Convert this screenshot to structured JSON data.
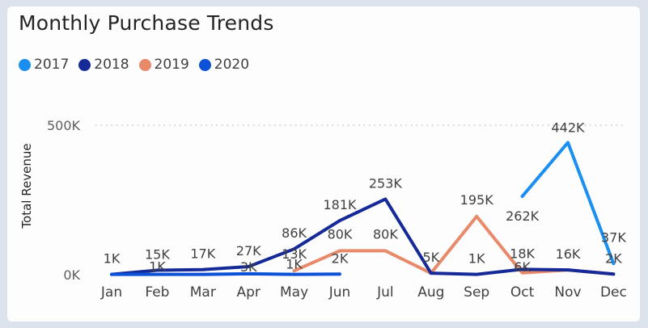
{
  "card": {
    "title": "Monthly Purchase Trends"
  },
  "chart_data": {
    "type": "line",
    "title": "Monthly Purchase Trends",
    "xlabel": "",
    "ylabel": "Total Revenue",
    "ylim": [
      0,
      500000
    ],
    "yticks": [
      {
        "value": 0,
        "label": "0K"
      },
      {
        "value": 500000,
        "label": "500K"
      }
    ],
    "grid": true,
    "legend_position": "top-left",
    "categories": [
      "Jan",
      "Feb",
      "Mar",
      "Apr",
      "May",
      "Jun",
      "Jul",
      "Aug",
      "Sep",
      "Oct",
      "Nov",
      "Dec"
    ],
    "series": [
      {
        "name": "2017",
        "color": "#1a8ff0",
        "values": [
          null,
          null,
          null,
          null,
          null,
          null,
          null,
          null,
          null,
          262000,
          442000,
          37000
        ],
        "labels": [
          null,
          null,
          null,
          null,
          null,
          null,
          null,
          null,
          null,
          "262K",
          "442K",
          "37K"
        ]
      },
      {
        "name": "2018",
        "color": "#152a96",
        "values": [
          1000,
          15000,
          17000,
          27000,
          86000,
          181000,
          253000,
          5000,
          1000,
          18000,
          16000,
          2000
        ],
        "labels": [
          "1K",
          "15K",
          "17K",
          "27K",
          "86K",
          "181K",
          "253K",
          "5K",
          "1K",
          "18K",
          "16K",
          "2K"
        ]
      },
      {
        "name": "2019",
        "color": "#e8896a",
        "values": [
          null,
          null,
          null,
          null,
          13000,
          80000,
          80000,
          5000,
          195000,
          6000,
          16000,
          2000
        ],
        "labels": [
          null,
          null,
          null,
          null,
          "13K",
          "80K",
          "80K",
          null,
          "195K",
          "6K",
          null,
          null
        ]
      },
      {
        "name": "2020",
        "color": "#0d52d6",
        "values": [
          1000,
          1000,
          1000,
          3000,
          1000,
          2000,
          null,
          null,
          null,
          null,
          null,
          null
        ],
        "labels": [
          null,
          "1K",
          null,
          "3K",
          "1K",
          "2K",
          null,
          null,
          null,
          null,
          null,
          null
        ]
      }
    ]
  }
}
